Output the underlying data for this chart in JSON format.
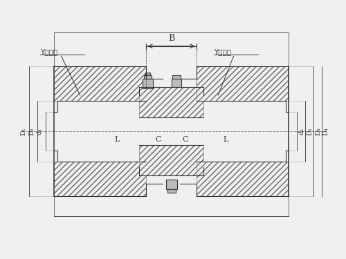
{
  "bg_color": "#f0f0f0",
  "line_color": "#333333",
  "hatch_color": "#555555",
  "label_B": "B",
  "label_L_left": "L",
  "label_L_right": "L",
  "label_C_left": "C",
  "label_C_right": "C",
  "label_Y_left": "Y型轴孔",
  "label_Y_right": "Y型轴孔",
  "label_D1_left": "D₁",
  "label_D2_left": "D₂",
  "label_d1_left": "d₁",
  "label_D1_right": "d₂",
  "label_D2_right": "D₂",
  "label_D3_right": "D₃",
  "label_D4_right": "D₄"
}
